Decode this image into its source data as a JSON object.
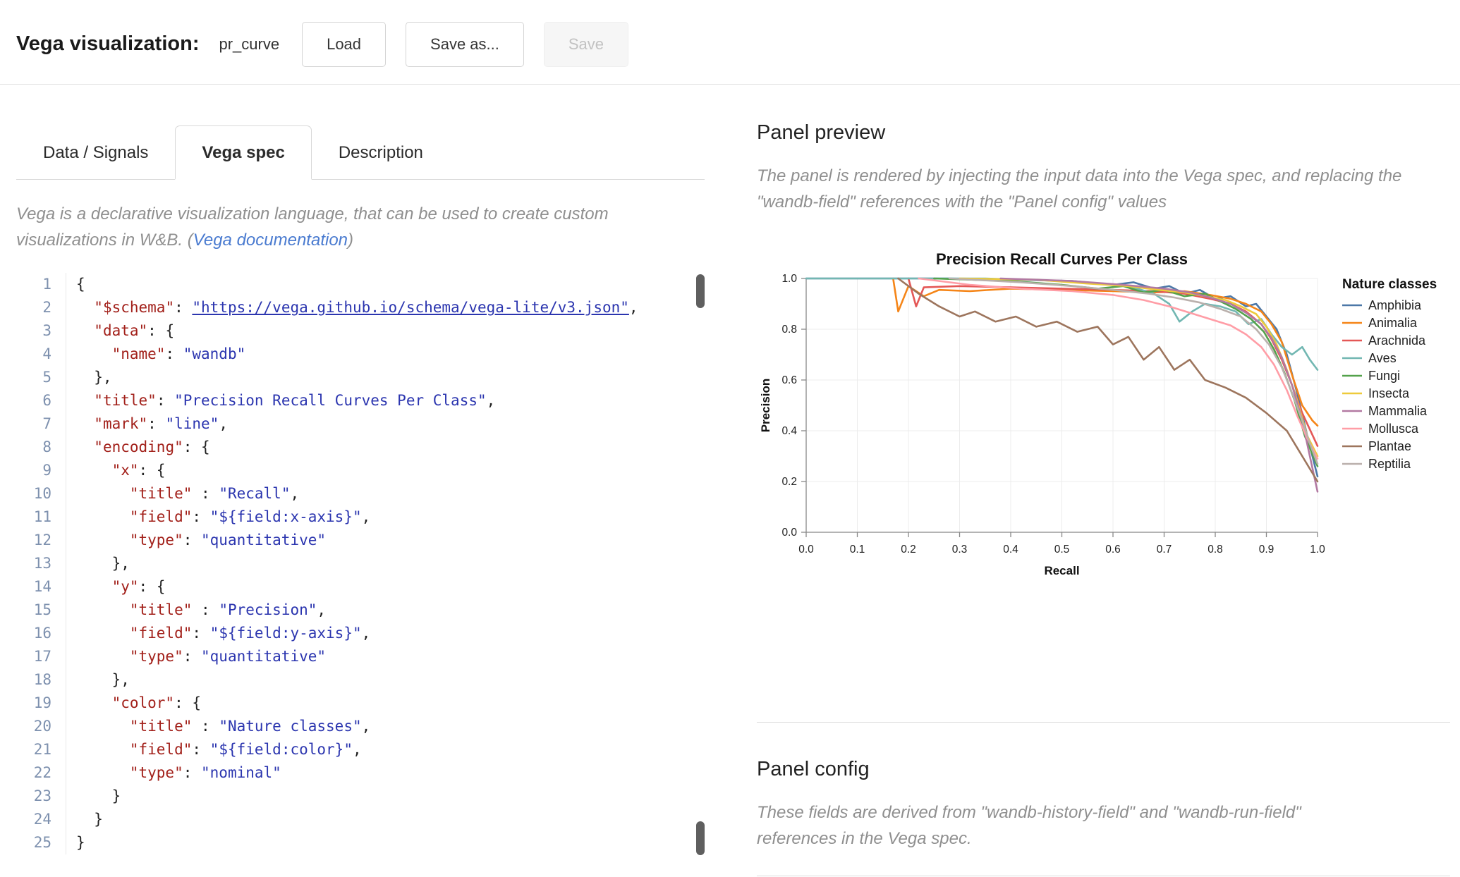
{
  "header": {
    "title": "Vega visualization:",
    "panel_name": "pr_curve",
    "buttons": {
      "load": "Load",
      "save_as": "Save as...",
      "save": "Save"
    }
  },
  "tabs": [
    {
      "label": "Data / Signals",
      "active": false
    },
    {
      "label": "Vega spec",
      "active": true
    },
    {
      "label": "Description",
      "active": false
    }
  ],
  "intro": {
    "prefix": "Vega is a declarative visualization language, that can be used to create custom visualizations in W&B. (",
    "link": "Vega documentation",
    "suffix": ")"
  },
  "editor": {
    "lines": [
      [
        [
          "p",
          "{"
        ]
      ],
      [
        [
          "p",
          "  "
        ],
        [
          "k",
          "\"$schema\""
        ],
        [
          "p",
          ": "
        ],
        [
          "l",
          "\"https://vega.github.io/schema/vega-lite/v3.json\""
        ],
        [
          "p",
          ","
        ]
      ],
      [
        [
          "p",
          "  "
        ],
        [
          "k",
          "\"data\""
        ],
        [
          "p",
          ": {"
        ]
      ],
      [
        [
          "p",
          "    "
        ],
        [
          "k",
          "\"name\""
        ],
        [
          "p",
          ": "
        ],
        [
          "s",
          "\"wandb\""
        ]
      ],
      [
        [
          "p",
          "  },"
        ]
      ],
      [
        [
          "p",
          "  "
        ],
        [
          "k",
          "\"title\""
        ],
        [
          "p",
          ": "
        ],
        [
          "s",
          "\"Precision Recall Curves Per Class\""
        ],
        [
          "p",
          ","
        ]
      ],
      [
        [
          "p",
          "  "
        ],
        [
          "k",
          "\"mark\""
        ],
        [
          "p",
          ": "
        ],
        [
          "s",
          "\"line\""
        ],
        [
          "p",
          ","
        ]
      ],
      [
        [
          "p",
          "  "
        ],
        [
          "k",
          "\"encoding\""
        ],
        [
          "p",
          ": {"
        ]
      ],
      [
        [
          "p",
          "    "
        ],
        [
          "k",
          "\"x\""
        ],
        [
          "p",
          ": {"
        ]
      ],
      [
        [
          "p",
          "      "
        ],
        [
          "k",
          "\"title\""
        ],
        [
          "p",
          " : "
        ],
        [
          "s",
          "\"Recall\""
        ],
        [
          "p",
          ","
        ]
      ],
      [
        [
          "p",
          "      "
        ],
        [
          "k",
          "\"field\""
        ],
        [
          "p",
          ": "
        ],
        [
          "s",
          "\"${field:x-axis}\""
        ],
        [
          "p",
          ","
        ]
      ],
      [
        [
          "p",
          "      "
        ],
        [
          "k",
          "\"type\""
        ],
        [
          "p",
          ": "
        ],
        [
          "s",
          "\"quantitative\""
        ]
      ],
      [
        [
          "p",
          "    },"
        ]
      ],
      [
        [
          "p",
          "    "
        ],
        [
          "k",
          "\"y\""
        ],
        [
          "p",
          ": {"
        ]
      ],
      [
        [
          "p",
          "      "
        ],
        [
          "k",
          "\"title\""
        ],
        [
          "p",
          " : "
        ],
        [
          "s",
          "\"Precision\""
        ],
        [
          "p",
          ","
        ]
      ],
      [
        [
          "p",
          "      "
        ],
        [
          "k",
          "\"field\""
        ],
        [
          "p",
          ": "
        ],
        [
          "s",
          "\"${field:y-axis}\""
        ],
        [
          "p",
          ","
        ]
      ],
      [
        [
          "p",
          "      "
        ],
        [
          "k",
          "\"type\""
        ],
        [
          "p",
          ": "
        ],
        [
          "s",
          "\"quantitative\""
        ]
      ],
      [
        [
          "p",
          "    },"
        ]
      ],
      [
        [
          "p",
          "    "
        ],
        [
          "k",
          "\"color\""
        ],
        [
          "p",
          ": {"
        ]
      ],
      [
        [
          "p",
          "      "
        ],
        [
          "k",
          "\"title\""
        ],
        [
          "p",
          " : "
        ],
        [
          "s",
          "\"Nature classes\""
        ],
        [
          "p",
          ","
        ]
      ],
      [
        [
          "p",
          "      "
        ],
        [
          "k",
          "\"field\""
        ],
        [
          "p",
          ": "
        ],
        [
          "s",
          "\"${field:color}\""
        ],
        [
          "p",
          ","
        ]
      ],
      [
        [
          "p",
          "      "
        ],
        [
          "k",
          "\"type\""
        ],
        [
          "p",
          ": "
        ],
        [
          "s",
          "\"nominal\""
        ]
      ],
      [
        [
          "p",
          "    }"
        ]
      ],
      [
        [
          "p",
          "  }"
        ]
      ],
      [
        [
          "p",
          "}"
        ]
      ]
    ]
  },
  "panel_preview": {
    "heading": "Panel preview",
    "description": "The panel is rendered by injecting the input data into the Vega spec, and replacing the \"wandb-field\" references with the \"Panel config\" values"
  },
  "panel_config": {
    "heading": "Panel config",
    "description": "These fields are derived from \"wandb-history-field\" and \"wandb-run-field\" references in the Vega spec."
  },
  "chart_data": {
    "type": "line",
    "title": "Precision Recall Curves Per Class",
    "xlabel": "Recall",
    "ylabel": "Precision",
    "xlim": [
      0,
      1
    ],
    "ylim": [
      0,
      1
    ],
    "x_ticks": [
      0,
      0.1,
      0.2,
      0.3,
      0.4,
      0.5,
      0.6,
      0.7,
      0.8,
      0.9,
      1.0
    ],
    "y_ticks": [
      0,
      0.2,
      0.4,
      0.6,
      0.8,
      1.0
    ],
    "grid": true,
    "legend_title": "Nature classes",
    "legend_position": "right",
    "series": [
      {
        "name": "Amphibia",
        "color": "#4c78a8",
        "points": [
          [
            0.0,
            1.0
          ],
          [
            0.28,
            1.0
          ],
          [
            0.42,
            0.995
          ],
          [
            0.52,
            0.99
          ],
          [
            0.6,
            0.975
          ],
          [
            0.64,
            0.985
          ],
          [
            0.68,
            0.96
          ],
          [
            0.71,
            0.97
          ],
          [
            0.74,
            0.94
          ],
          [
            0.77,
            0.955
          ],
          [
            0.8,
            0.92
          ],
          [
            0.83,
            0.93
          ],
          [
            0.86,
            0.89
          ],
          [
            0.88,
            0.9
          ],
          [
            0.9,
            0.85
          ],
          [
            0.92,
            0.8
          ],
          [
            0.94,
            0.7
          ],
          [
            0.96,
            0.55
          ],
          [
            0.98,
            0.38
          ],
          [
            1.0,
            0.22
          ]
        ]
      },
      {
        "name": "Animalia",
        "color": "#f58518",
        "points": [
          [
            0.17,
            1.0
          ],
          [
            0.18,
            0.87
          ],
          [
            0.2,
            0.97
          ],
          [
            0.23,
            0.93
          ],
          [
            0.26,
            0.955
          ],
          [
            0.32,
            0.95
          ],
          [
            0.4,
            0.96
          ],
          [
            0.5,
            0.955
          ],
          [
            0.6,
            0.95
          ],
          [
            0.68,
            0.945
          ],
          [
            0.74,
            0.95
          ],
          [
            0.79,
            0.935
          ],
          [
            0.83,
            0.92
          ],
          [
            0.86,
            0.9
          ],
          [
            0.89,
            0.87
          ],
          [
            0.91,
            0.82
          ],
          [
            0.93,
            0.75
          ],
          [
            0.95,
            0.62
          ],
          [
            0.97,
            0.5
          ],
          [
            0.99,
            0.44
          ],
          [
            1.0,
            0.42
          ]
        ]
      },
      {
        "name": "Arachnida",
        "color": "#e45756",
        "points": [
          [
            0.2,
            1.0
          ],
          [
            0.215,
            0.89
          ],
          [
            0.23,
            0.965
          ],
          [
            0.3,
            0.97
          ],
          [
            0.4,
            0.965
          ],
          [
            0.5,
            0.96
          ],
          [
            0.6,
            0.955
          ],
          [
            0.68,
            0.95
          ],
          [
            0.74,
            0.94
          ],
          [
            0.79,
            0.92
          ],
          [
            0.83,
            0.9
          ],
          [
            0.86,
            0.87
          ],
          [
            0.89,
            0.82
          ],
          [
            0.91,
            0.76
          ],
          [
            0.93,
            0.68
          ],
          [
            0.95,
            0.58
          ],
          [
            0.97,
            0.47
          ],
          [
            1.0,
            0.34
          ]
        ]
      },
      {
        "name": "Aves",
        "color": "#72b7b2",
        "points": [
          [
            0.0,
            1.0
          ],
          [
            0.35,
            1.0
          ],
          [
            0.5,
            0.99
          ],
          [
            0.58,
            0.98
          ],
          [
            0.64,
            0.965
          ],
          [
            0.68,
            0.94
          ],
          [
            0.71,
            0.9
          ],
          [
            0.73,
            0.83
          ],
          [
            0.755,
            0.87
          ],
          [
            0.78,
            0.9
          ],
          [
            0.81,
            0.89
          ],
          [
            0.84,
            0.87
          ],
          [
            0.865,
            0.82
          ],
          [
            0.89,
            0.84
          ],
          [
            0.91,
            0.78
          ],
          [
            0.93,
            0.73
          ],
          [
            0.95,
            0.7
          ],
          [
            0.97,
            0.73
          ],
          [
            0.985,
            0.68
          ],
          [
            1.0,
            0.64
          ]
        ]
      },
      {
        "name": "Fungi",
        "color": "#54a24b",
        "points": [
          [
            0.25,
            1.0
          ],
          [
            0.4,
            0.99
          ],
          [
            0.5,
            0.975
          ],
          [
            0.57,
            0.96
          ],
          [
            0.62,
            0.97
          ],
          [
            0.66,
            0.945
          ],
          [
            0.7,
            0.955
          ],
          [
            0.74,
            0.93
          ],
          [
            0.78,
            0.94
          ],
          [
            0.81,
            0.91
          ],
          [
            0.84,
            0.88
          ],
          [
            0.87,
            0.84
          ],
          [
            0.895,
            0.79
          ],
          [
            0.915,
            0.72
          ],
          [
            0.935,
            0.63
          ],
          [
            0.955,
            0.52
          ],
          [
            0.975,
            0.38
          ],
          [
            1.0,
            0.26
          ]
        ]
      },
      {
        "name": "Insecta",
        "color": "#eeca3b",
        "points": [
          [
            0.3,
            1.0
          ],
          [
            0.45,
            0.995
          ],
          [
            0.55,
            0.98
          ],
          [
            0.63,
            0.97
          ],
          [
            0.69,
            0.955
          ],
          [
            0.74,
            0.945
          ],
          [
            0.78,
            0.93
          ],
          [
            0.82,
            0.915
          ],
          [
            0.85,
            0.89
          ],
          [
            0.88,
            0.86
          ],
          [
            0.9,
            0.81
          ],
          [
            0.92,
            0.74
          ],
          [
            0.94,
            0.64
          ],
          [
            0.96,
            0.52
          ],
          [
            0.98,
            0.38
          ],
          [
            1.0,
            0.3
          ]
        ]
      },
      {
        "name": "Mammalia",
        "color": "#b279a2",
        "points": [
          [
            0.38,
            1.0
          ],
          [
            0.52,
            0.99
          ],
          [
            0.62,
            0.975
          ],
          [
            0.7,
            0.96
          ],
          [
            0.75,
            0.945
          ],
          [
            0.79,
            0.925
          ],
          [
            0.83,
            0.9
          ],
          [
            0.86,
            0.865
          ],
          [
            0.89,
            0.82
          ],
          [
            0.91,
            0.765
          ],
          [
            0.93,
            0.69
          ],
          [
            0.95,
            0.58
          ],
          [
            0.97,
            0.44
          ],
          [
            0.985,
            0.3
          ],
          [
            1.0,
            0.16
          ]
        ]
      },
      {
        "name": "Mollusca",
        "color": "#ff9da6",
        "points": [
          [
            0.22,
            1.0
          ],
          [
            0.32,
            0.975
          ],
          [
            0.42,
            0.96
          ],
          [
            0.52,
            0.95
          ],
          [
            0.6,
            0.935
          ],
          [
            0.66,
            0.915
          ],
          [
            0.71,
            0.89
          ],
          [
            0.75,
            0.865
          ],
          [
            0.79,
            0.84
          ],
          [
            0.83,
            0.815
          ],
          [
            0.86,
            0.78
          ],
          [
            0.89,
            0.73
          ],
          [
            0.915,
            0.66
          ],
          [
            0.94,
            0.56
          ],
          [
            0.96,
            0.46
          ],
          [
            0.98,
            0.37
          ],
          [
            1.0,
            0.29
          ]
        ]
      },
      {
        "name": "Plantae",
        "color": "#9d755d",
        "points": [
          [
            0.18,
            1.0
          ],
          [
            0.22,
            0.94
          ],
          [
            0.26,
            0.89
          ],
          [
            0.3,
            0.85
          ],
          [
            0.33,
            0.87
          ],
          [
            0.37,
            0.83
          ],
          [
            0.41,
            0.85
          ],
          [
            0.45,
            0.81
          ],
          [
            0.49,
            0.83
          ],
          [
            0.53,
            0.79
          ],
          [
            0.57,
            0.81
          ],
          [
            0.6,
            0.74
          ],
          [
            0.63,
            0.77
          ],
          [
            0.66,
            0.68
          ],
          [
            0.69,
            0.73
          ],
          [
            0.72,
            0.64
          ],
          [
            0.75,
            0.68
          ],
          [
            0.78,
            0.6
          ],
          [
            0.82,
            0.57
          ],
          [
            0.86,
            0.53
          ],
          [
            0.9,
            0.47
          ],
          [
            0.94,
            0.4
          ],
          [
            0.97,
            0.3
          ],
          [
            1.0,
            0.2
          ]
        ]
      },
      {
        "name": "Reptilia",
        "color": "#bab0ac",
        "points": [
          [
            0.28,
            1.0
          ],
          [
            0.42,
            0.985
          ],
          [
            0.52,
            0.97
          ],
          [
            0.6,
            0.955
          ],
          [
            0.67,
            0.94
          ],
          [
            0.72,
            0.925
          ],
          [
            0.77,
            0.905
          ],
          [
            0.81,
            0.88
          ],
          [
            0.85,
            0.85
          ],
          [
            0.88,
            0.8
          ],
          [
            0.905,
            0.74
          ],
          [
            0.93,
            0.65
          ],
          [
            0.95,
            0.55
          ],
          [
            0.97,
            0.44
          ],
          [
            0.985,
            0.35
          ],
          [
            1.0,
            0.27
          ]
        ]
      }
    ]
  }
}
